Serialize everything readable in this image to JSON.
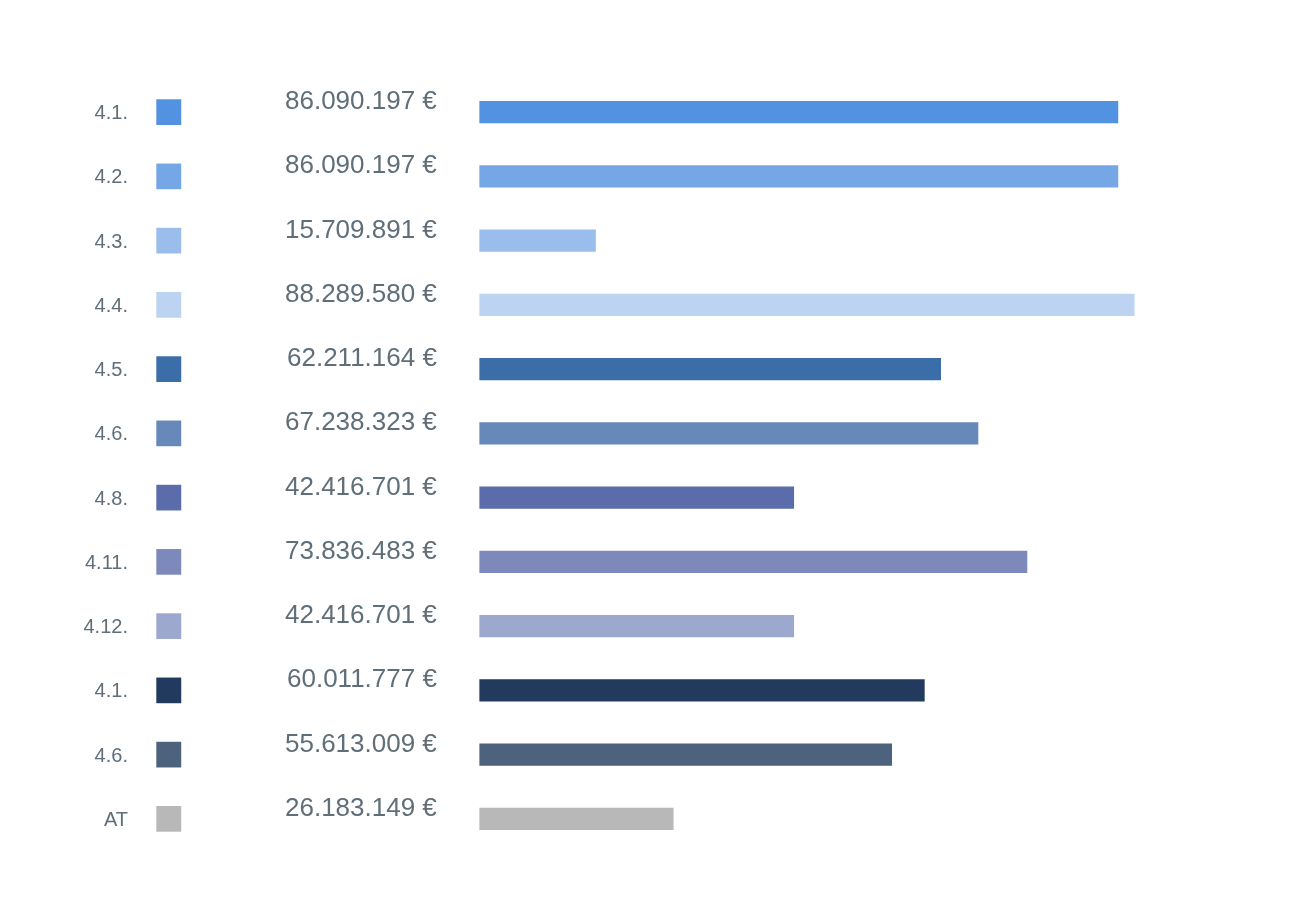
{
  "chart_data": {
    "type": "bar",
    "orientation": "horizontal",
    "tick_labels": "y",
    "categories": [
      "4.1.",
      "4.2.",
      "4.3.",
      "4.4.",
      "4.5.",
      "4.6.",
      "4.8.",
      "4.11.",
      "4.12.",
      "4.1.",
      "4.6.",
      "AT"
    ],
    "values": [
      86090197,
      86090197,
      15709891,
      88289580,
      62211164,
      67238323,
      42416701,
      73836483,
      42416701,
      60011777,
      55613009,
      26183149
    ],
    "value_labels": [
      "86.090.197 €",
      "86.090.197 €",
      "15.709.891 €",
      "88.289.580 €",
      "62.211.164 €",
      "67.238.323 €",
      "42.416.701 €",
      "73.836.483 €",
      "42.416.701 €",
      "60.011.777 €",
      "55.613.009 €",
      "26.183.149 €"
    ],
    "colors": [
      "#5392e0",
      "#75a6e6",
      "#9bbdec",
      "#bcd4f2",
      "#3b6ea9",
      "#6689ba",
      "#5b6cab",
      "#7e89bb",
      "#9da8cf",
      "#213a5e",
      "#4d627d",
      "#b8b8b8"
    ]
  }
}
